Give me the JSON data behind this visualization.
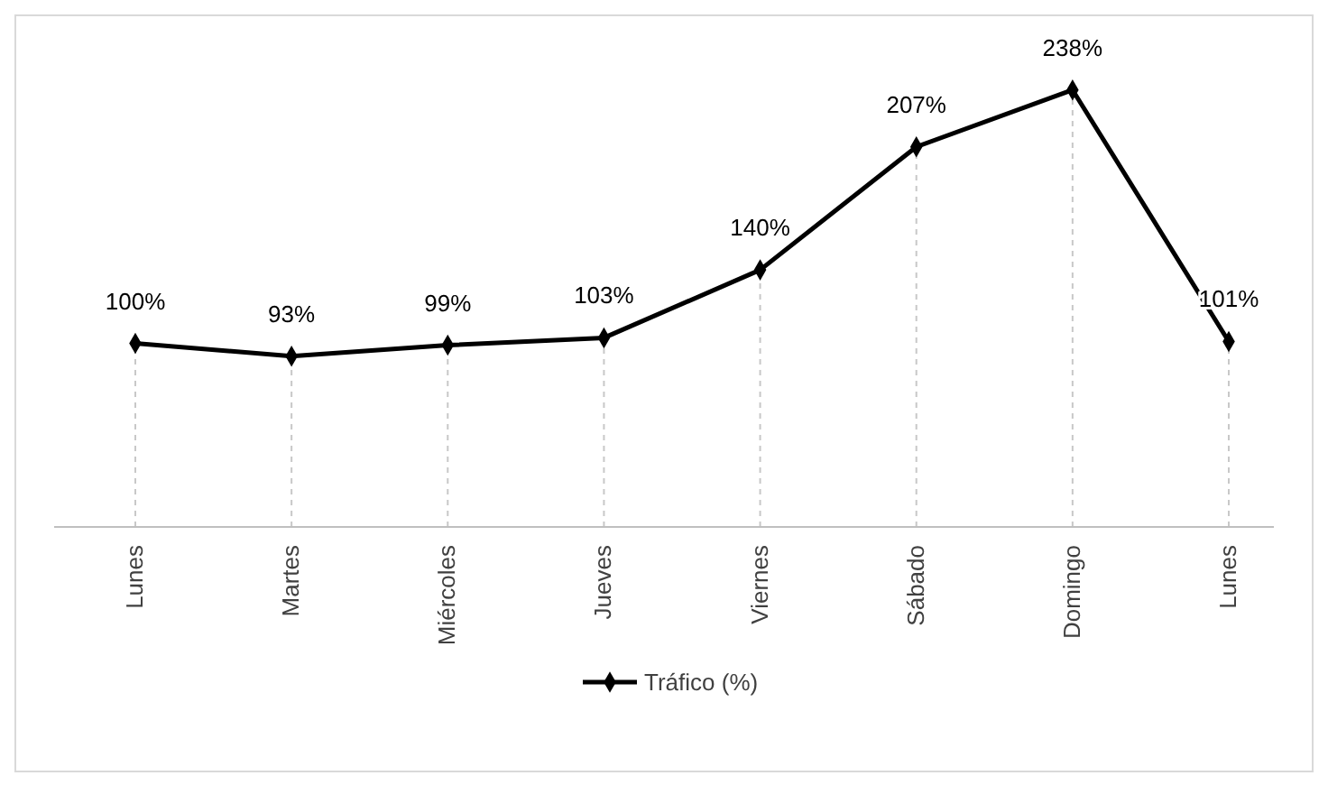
{
  "chart_data": {
    "type": "line",
    "categories": [
      "Lunes",
      "Martes",
      "Miércoles",
      "Jueves",
      "Viernes",
      "Sábado",
      "Domingo",
      "Lunes"
    ],
    "series": [
      {
        "name": "Tráfico (%)",
        "color": "#000000",
        "values": [
          100,
          93,
          99,
          103,
          140,
          207,
          238,
          101
        ],
        "value_labels": [
          "100%",
          "93%",
          "99%",
          "103%",
          "140%",
          "207%",
          "238%",
          "101%"
        ]
      }
    ],
    "marker": "diamond",
    "line_style": "solid",
    "grid": "x",
    "legend": "bottom"
  }
}
